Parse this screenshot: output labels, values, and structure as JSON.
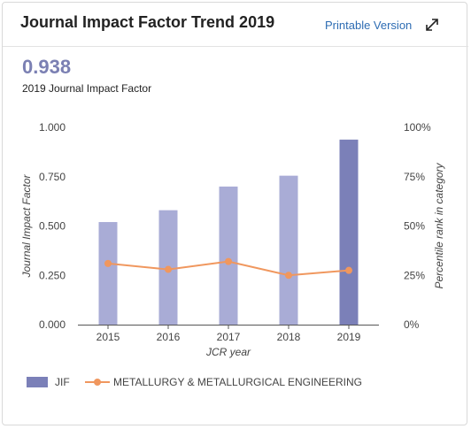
{
  "header": {
    "title": "Journal Impact Factor Trend 2019",
    "printable_label": "Printable Version",
    "expand_icon": "expand-icon"
  },
  "summary": {
    "value": "0.938",
    "caption": "2019 Journal Impact Factor"
  },
  "colors": {
    "bar": "#a9acd6",
    "bar_highlight": "#7b80b8",
    "line": "#f0975e",
    "link": "#2d6cb3"
  },
  "chart_data": {
    "type": "bar",
    "categories": [
      "2015",
      "2016",
      "2017",
      "2018",
      "2019"
    ],
    "xlabel": "JCR year",
    "ylabel": "Journal Impact Factor",
    "y2label": "Percentile rank in category",
    "ylim": [
      0,
      1
    ],
    "y_ticks": [
      "0.000",
      "0.250",
      "0.500",
      "0.750",
      "1.000"
    ],
    "y2lim": [
      0,
      100
    ],
    "y2_ticks": [
      "0%",
      "25%",
      "50%",
      "75%",
      "100%"
    ],
    "grid": false,
    "legend_position": "bottom",
    "series": [
      {
        "name": "JIF",
        "type": "bar",
        "axis": "left",
        "values": [
          0.52,
          0.58,
          0.7,
          0.755,
          0.938
        ]
      },
      {
        "name": "METALLURGY & METALLURGICAL ENGINEERING",
        "type": "line",
        "axis": "right",
        "values": [
          31,
          28,
          32,
          25,
          27.5
        ]
      }
    ]
  }
}
